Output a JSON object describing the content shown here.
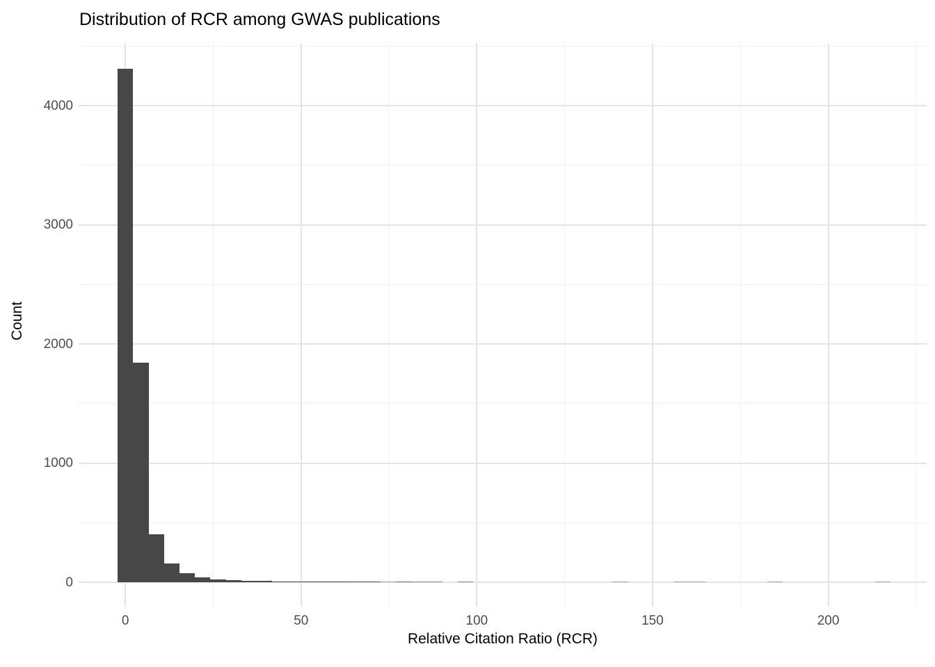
{
  "chart_data": {
    "type": "histogram",
    "title": "Distribution of RCR among GWAS publications",
    "xlabel": "Relative Citation Ratio (RCR)",
    "ylabel": "Count",
    "x_domain": [
      -13.3,
      228.0
    ],
    "y_domain": [
      -204,
      4526
    ],
    "x_ticks": [
      0,
      50,
      100,
      150,
      200
    ],
    "x_minor_ticks": [
      25,
      75,
      125,
      175,
      225
    ],
    "y_ticks": [
      0,
      1000,
      2000,
      3000,
      4000
    ],
    "y_minor_ticks": [
      500,
      1500,
      2500,
      3500,
      4500
    ],
    "bin_start": -2.2,
    "bin_width": 4.4,
    "bin_counts": [
      4310,
      1845,
      400,
      155,
      75,
      42,
      25,
      17,
      12,
      9,
      7,
      6,
      6,
      5,
      5,
      4,
      4,
      1,
      3,
      2,
      2,
      0,
      2,
      0,
      0,
      0,
      0,
      0,
      0,
      0,
      0,
      0,
      1,
      0,
      0,
      0,
      1,
      1,
      0,
      0,
      0,
      0,
      1,
      0,
      0,
      0,
      0,
      0,
      0,
      1
    ],
    "grid": true,
    "legend": false
  },
  "style": {
    "bar_color": "#474747",
    "background_color": "#ffffff",
    "grid_major_color": "#e4e4e4",
    "grid_minor_color": "#f1f1f1",
    "tick_label_color": "#4d4d4d",
    "title_color": "#000000",
    "axis_title_color": "#000000"
  }
}
